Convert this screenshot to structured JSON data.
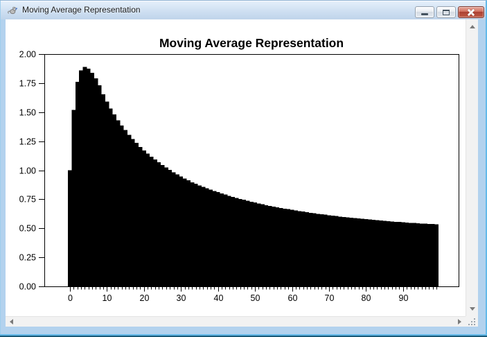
{
  "window": {
    "title": "Moving Average Representation",
    "icon": "rat-app-icon",
    "controls": {
      "minimize": "Minimize",
      "maximize": "Maximize",
      "close": "Close"
    }
  },
  "colors": {
    "titlebar_top": "#e6f0fb",
    "titlebar_bottom": "#bfd4ea",
    "border_fill": "#b3d2ee",
    "border_cyan": "#63b9e9",
    "border_dark": "#1a5a78",
    "close_top": "#e8ab9f",
    "close_bottom": "#ab4033"
  },
  "chart_data": {
    "type": "bar",
    "title": "Moving Average Representation",
    "xlabel": "",
    "ylabel": "",
    "bar_color": "#000000",
    "grid": false,
    "legend": false,
    "ylim": [
      0,
      2
    ],
    "xlim": [
      -6.9,
      105.0
    ],
    "yticks": [
      "2.00",
      "1.75",
      "1.50",
      "1.25",
      "1.00",
      "0.75",
      "0.50",
      "0.25",
      "0.00"
    ],
    "xticks": [
      0,
      10,
      20,
      30,
      40,
      50,
      60,
      70,
      80,
      90
    ],
    "x": [
      0,
      1,
      2,
      3,
      4,
      5,
      6,
      7,
      8,
      9,
      10,
      11,
      12,
      13,
      14,
      15,
      16,
      17,
      18,
      19,
      20,
      21,
      22,
      23,
      24,
      25,
      26,
      27,
      28,
      29,
      30,
      31,
      32,
      33,
      34,
      35,
      36,
      37,
      38,
      39,
      40,
      41,
      42,
      43,
      44,
      45,
      46,
      47,
      48,
      49,
      50,
      51,
      52,
      53,
      54,
      55,
      56,
      57,
      58,
      59,
      60,
      61,
      62,
      63,
      64,
      65,
      66,
      67,
      68,
      69,
      70,
      71,
      72,
      73,
      74,
      75,
      76,
      77,
      78,
      79,
      80,
      81,
      82,
      83,
      84,
      85,
      86,
      87,
      88,
      89,
      90,
      91,
      92,
      93,
      94,
      95,
      96,
      97,
      98,
      99
    ],
    "values": [
      1.0,
      1.52,
      1.76,
      1.86,
      1.89,
      1.875,
      1.84,
      1.79,
      1.73,
      1.655,
      1.59,
      1.53,
      1.48,
      1.43,
      1.385,
      1.345,
      1.305,
      1.27,
      1.235,
      1.2,
      1.17,
      1.143,
      1.117,
      1.092,
      1.068,
      1.045,
      1.023,
      1.002,
      0.982,
      0.963,
      0.945,
      0.928,
      0.912,
      0.897,
      0.883,
      0.87,
      0.857,
      0.845,
      0.833,
      0.822,
      0.811,
      0.8,
      0.79,
      0.78,
      0.771,
      0.762,
      0.753,
      0.745,
      0.737,
      0.729,
      0.721,
      0.714,
      0.707,
      0.7,
      0.694,
      0.688,
      0.682,
      0.676,
      0.67,
      0.665,
      0.66,
      0.654,
      0.649,
      0.644,
      0.639,
      0.634,
      0.63,
      0.625,
      0.621,
      0.617,
      0.613,
      0.609,
      0.605,
      0.601,
      0.597,
      0.594,
      0.59,
      0.587,
      0.584,
      0.581,
      0.578,
      0.575,
      0.572,
      0.569,
      0.566,
      0.563,
      0.561,
      0.558,
      0.556,
      0.554,
      0.551,
      0.549,
      0.547,
      0.545,
      0.543,
      0.541,
      0.539,
      0.537,
      0.536,
      0.534
    ]
  }
}
